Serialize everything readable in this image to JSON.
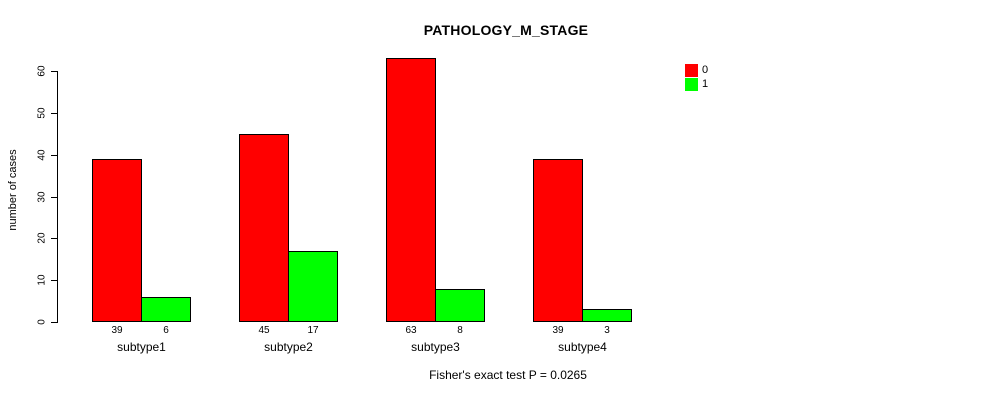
{
  "title": "PATHOLOGY_M_STAGE",
  "footer": "Fisher's exact test P = 0.0265",
  "y_axis": {
    "label": "number of cases",
    "ticks": [
      0,
      10,
      20,
      30,
      40,
      50,
      60
    ]
  },
  "legend": {
    "items": [
      {
        "label": "0",
        "color": "#FF0000"
      },
      {
        "label": "1",
        "color": "#00FF00"
      }
    ]
  },
  "chart_data": {
    "type": "bar",
    "grouped": true,
    "title": "PATHOLOGY_M_STAGE",
    "xlabel": "",
    "ylabel": "number of cases",
    "categories": [
      "subtype1",
      "subtype2",
      "subtype3",
      "subtype4"
    ],
    "series": [
      {
        "name": "0",
        "color": "#FF0000",
        "values": [
          39,
          45,
          63,
          39
        ]
      },
      {
        "name": "1",
        "color": "#00FF00",
        "values": [
          6,
          17,
          8,
          3
        ]
      }
    ],
    "ylim": [
      0,
      60
    ],
    "grid": false,
    "legend_position": "top-right",
    "show_values_below_bars": true,
    "annotation": "Fisher's exact test P = 0.0265"
  }
}
